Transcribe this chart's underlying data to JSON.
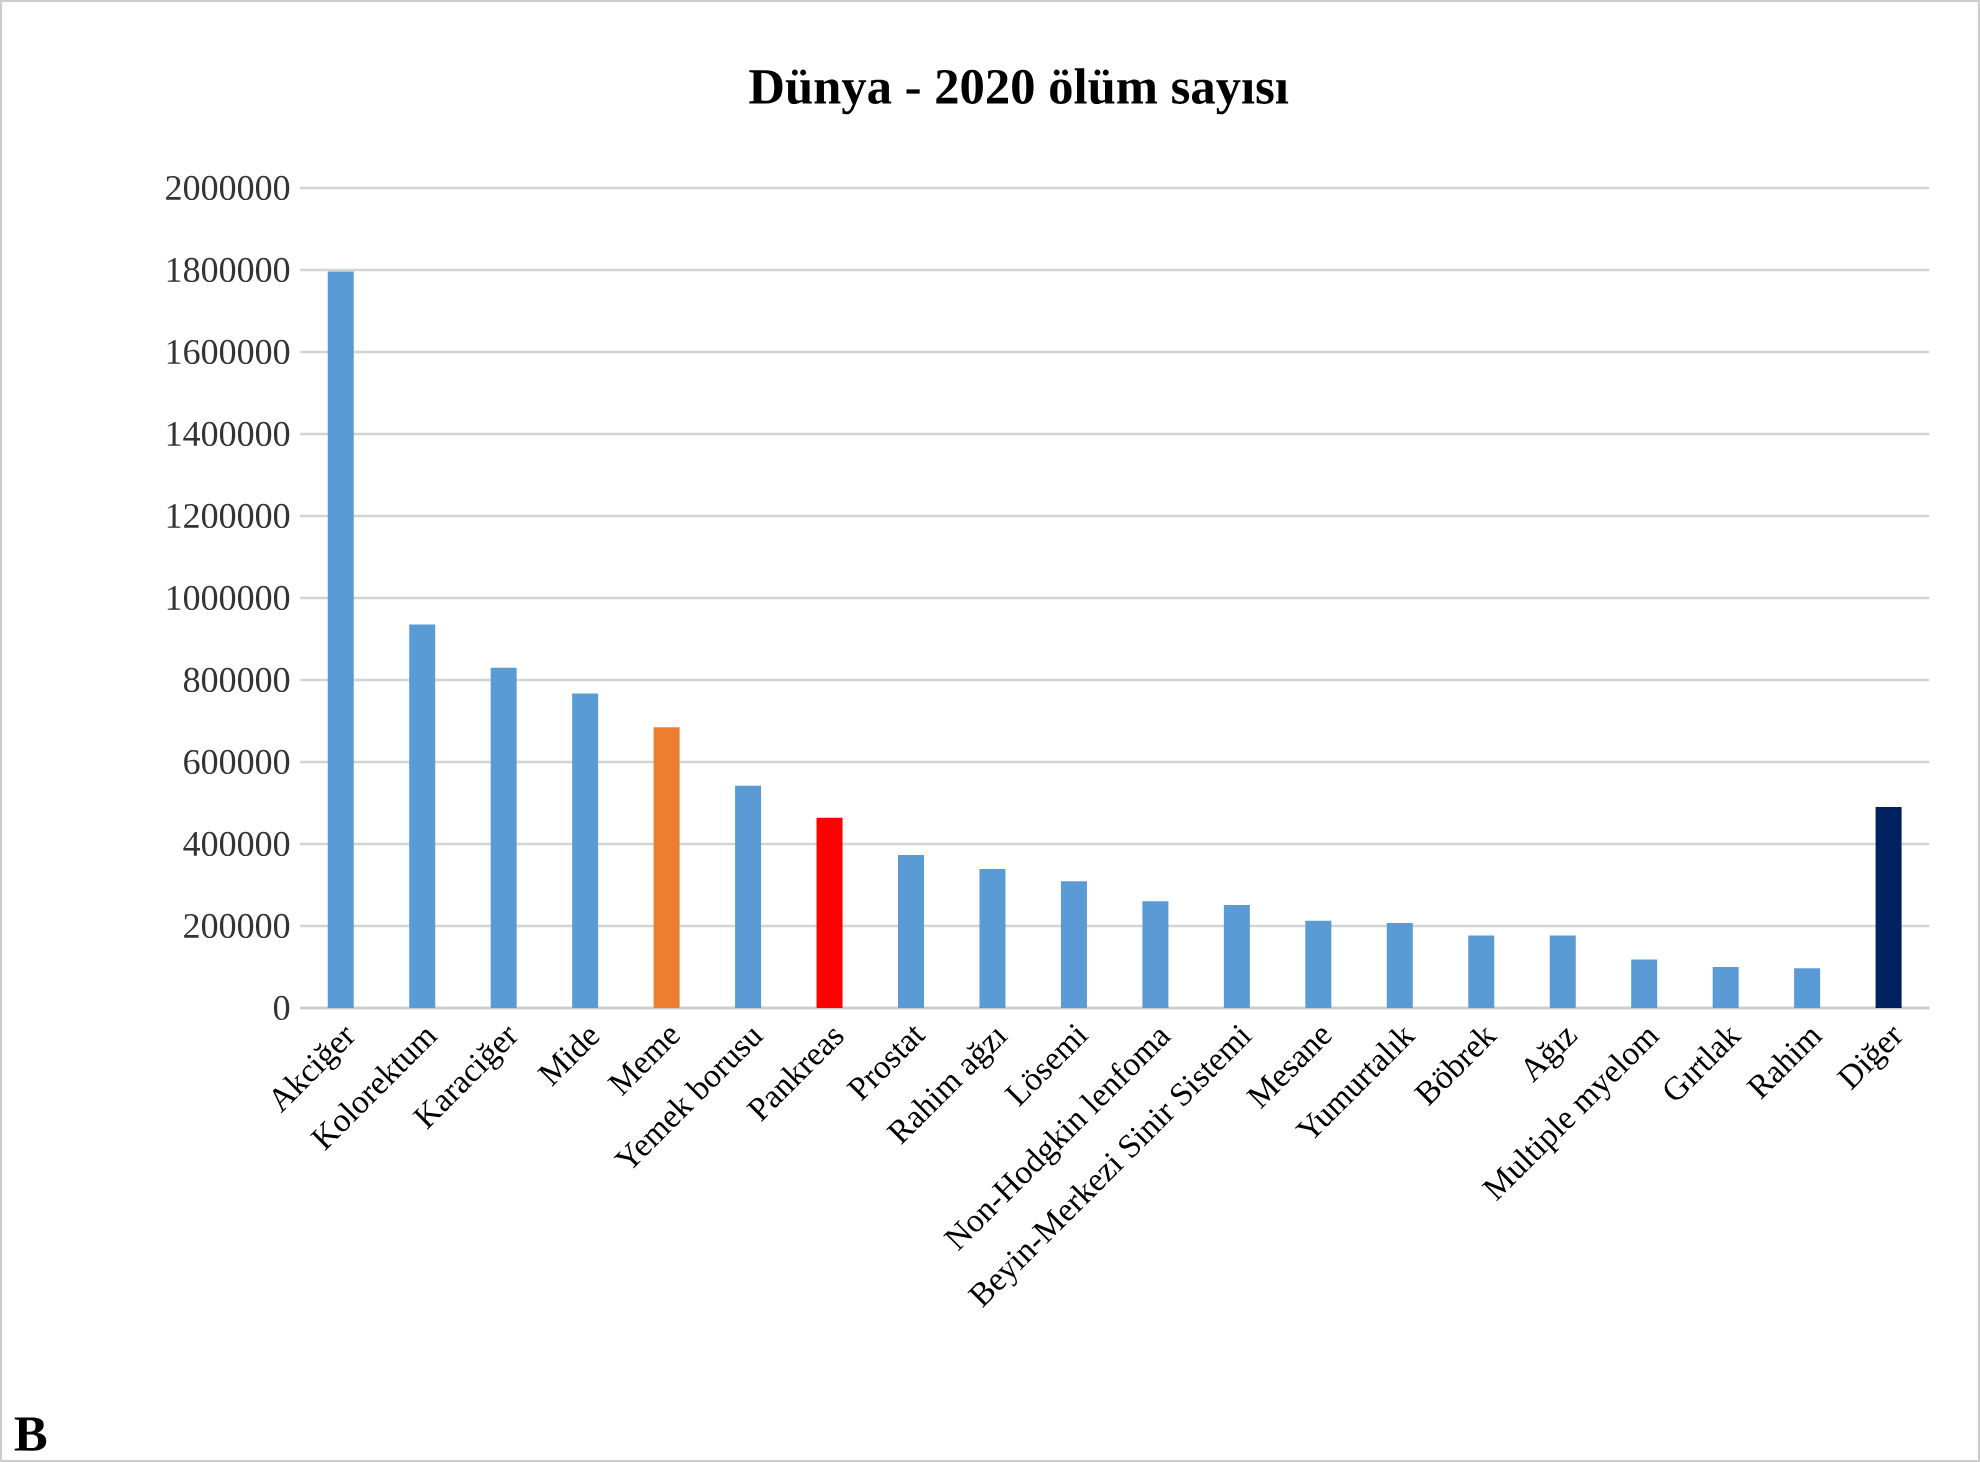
{
  "chart_data": {
    "type": "bar",
    "title": "Dünya - 2020 ölüm sayısı",
    "categories": [
      "Akciğer",
      "Kolorektum",
      "Karaciğer",
      "Mide",
      "Meme",
      "Yemek borusu",
      "Pankreas",
      "Prostat",
      "Rahim ağzı",
      "Lösemi",
      "Non-Hodgkin lenfoma",
      "Beyin-Merkezi Sinir Sistemi",
      "Mesane",
      "Yumurtalık",
      "Böbrek",
      "Ağız",
      "Multiple myelom",
      "Gırtlak",
      "Rahim",
      "Diğer"
    ],
    "values": [
      1796000,
      935000,
      830000,
      767000,
      685000,
      542000,
      464000,
      373000,
      339000,
      309000,
      260000,
      251000,
      213000,
      207000,
      177000,
      177000,
      118000,
      100000,
      97000,
      490000
    ],
    "colors": [
      "#5b9bd5",
      "#5b9bd5",
      "#5b9bd5",
      "#5b9bd5",
      "#ed7d31",
      "#5b9bd5",
      "#ff0000",
      "#5b9bd5",
      "#5b9bd5",
      "#5b9bd5",
      "#5b9bd5",
      "#5b9bd5",
      "#5b9bd5",
      "#5b9bd5",
      "#5b9bd5",
      "#5b9bd5",
      "#5b9bd5",
      "#5b9bd5",
      "#5b9bd5",
      "#002060"
    ],
    "ylim": [
      0,
      2000000
    ],
    "yticks": [
      0,
      200000,
      400000,
      600000,
      800000,
      1000000,
      1200000,
      1400000,
      1600000,
      1800000,
      2000000
    ],
    "grid": "y",
    "annotations": [
      "B"
    ]
  }
}
